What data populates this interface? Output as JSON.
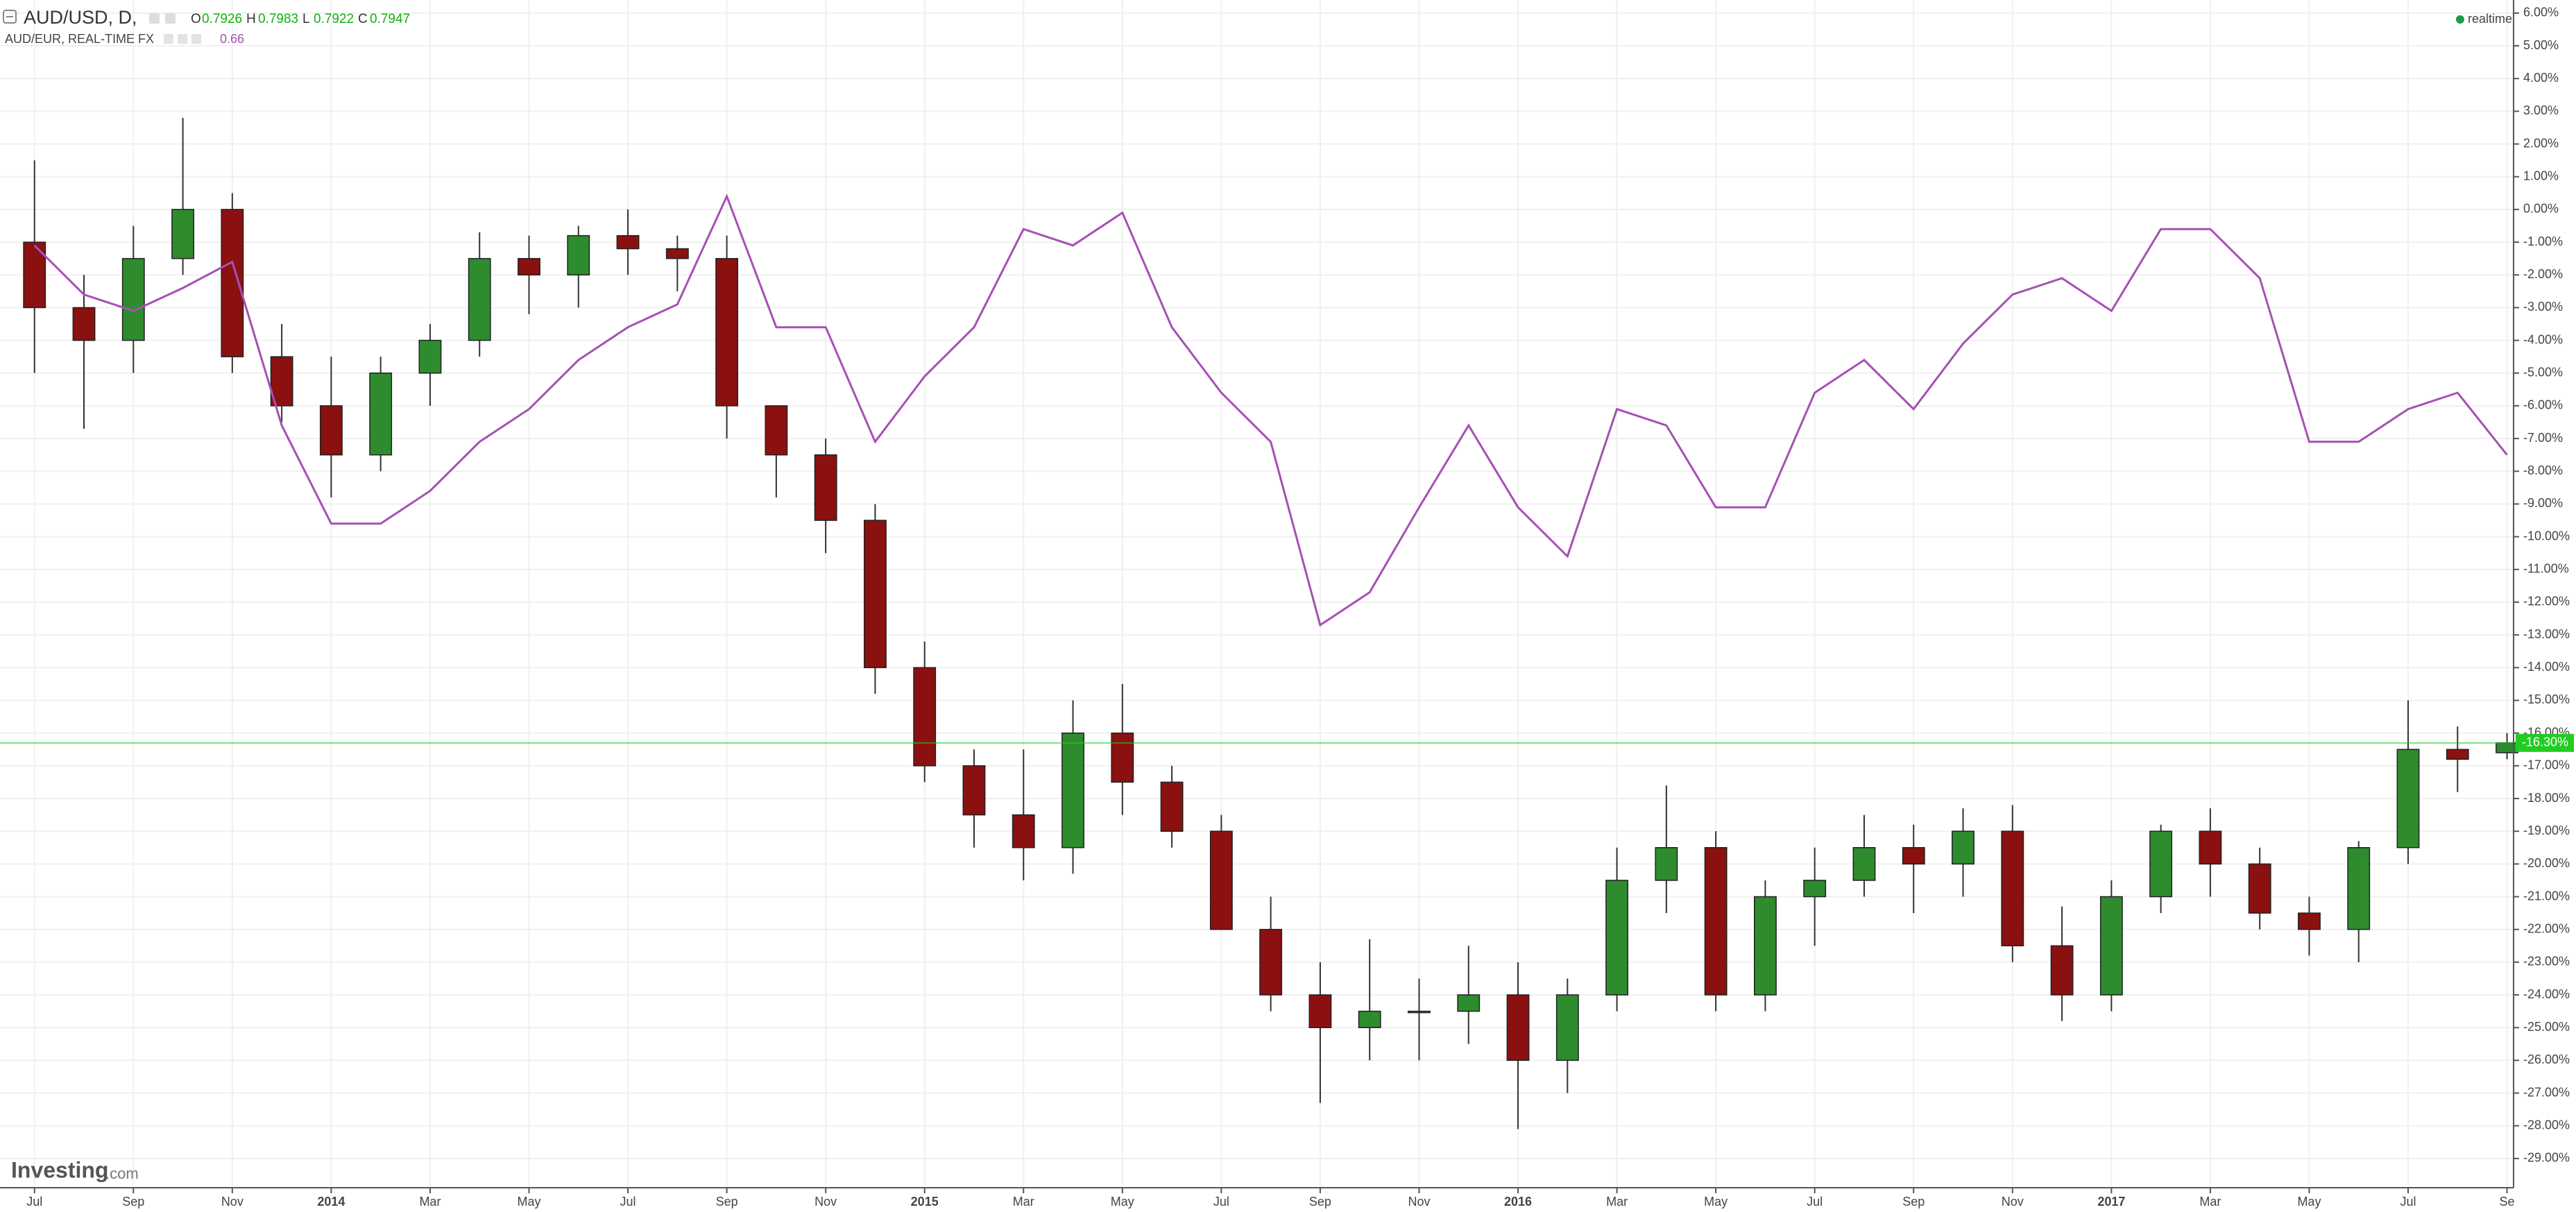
{
  "header": {
    "status": "realtime"
  },
  "logo": {
    "brand": "Investing",
    "suffix": ".com"
  },
  "chart_data": {
    "type": "candlestick",
    "categories": [
      "Jul",
      null,
      "Sep",
      null,
      "Nov",
      null,
      "2014",
      null,
      "Mar",
      null,
      "May",
      null,
      "Jul",
      null,
      "Sep",
      null,
      "Nov",
      null,
      "2015",
      null,
      "Mar",
      null,
      "May",
      null,
      "Jul",
      null,
      "Sep",
      null,
      "Nov",
      null,
      "2016",
      null,
      "Mar",
      null,
      "May",
      null,
      "Jul",
      null,
      "Sep",
      null,
      "Nov",
      null,
      "2017",
      null,
      "Mar",
      null,
      "May",
      null,
      "Jul",
      null,
      "Se"
    ],
    "series": [
      {
        "name": "AUD/USD, D,",
        "type": "candlestick",
        "up_color": "#2e8b2e",
        "down_color": "#8b1010",
        "readout": [
          {
            "label": "O",
            "value": 0.7926
          },
          {
            "label": "H",
            "value": 0.7983
          },
          {
            "label": "L",
            "value": 0.7922
          },
          {
            "label": "C",
            "value": 0.7947
          }
        ],
        "open": [
          -1,
          -3,
          -4,
          -1.5,
          0,
          -4.5,
          -6,
          -7.5,
          -5,
          -4,
          -1.5,
          -2,
          -0.8,
          -1.2,
          -1.5,
          -6,
          -7.5,
          -9.5,
          -14,
          -17,
          -18.5,
          -19.5,
          -16,
          -17.5,
          -19,
          -22,
          -24,
          -25,
          -24.5,
          -24.5,
          -24,
          -26,
          -24,
          -20.5,
          -19.5,
          -24,
          -21,
          -20.5,
          -19.5,
          -20,
          -19,
          -22.5,
          -24,
          -21,
          -19,
          -20,
          -21.5,
          -22,
          -19.5,
          -16.5,
          -16.6
        ],
        "high": [
          1.5,
          -2,
          -0.5,
          2.8,
          0.5,
          -3.5,
          -4.5,
          -4.5,
          -3.5,
          -0.7,
          -0.8,
          -0.5,
          0,
          -0.8,
          -0.8,
          -6,
          -7,
          -9,
          -13.2,
          -16.5,
          -16.5,
          -15,
          -14.5,
          -17,
          -18.5,
          -21,
          -23,
          -22.3,
          -23.5,
          -22.5,
          -23,
          -23.5,
          -19.5,
          -17.6,
          -19,
          -20.5,
          -19.5,
          -18.5,
          -18.8,
          -18.3,
          -18.2,
          -21.3,
          -20.5,
          -18.8,
          -18.3,
          -19.5,
          -21,
          -19.3,
          -15,
          -15.8,
          -16.0
        ],
        "low": [
          -5,
          -6.7,
          -5,
          -2,
          -5,
          -6.5,
          -8.8,
          -8,
          -6,
          -4.5,
          -3.2,
          -3,
          -2,
          -2.5,
          -7,
          -8.8,
          -10.5,
          -14.8,
          -17.5,
          -19.5,
          -20.5,
          -20.3,
          -18.5,
          -19.5,
          -22,
          -24.5,
          -27.3,
          -26,
          -26,
          -25.5,
          -28.1,
          -27,
          -24.5,
          -21.5,
          -24.5,
          -24.5,
          -22.5,
          -21,
          -21.5,
          -21,
          -23,
          -24.8,
          -24.5,
          -21.5,
          -21,
          -22,
          -22.8,
          -23,
          -20,
          -17.8,
          -16.8
        ],
        "close": [
          -3,
          -4,
          -1.5,
          0,
          -4.5,
          -6,
          -7.5,
          -5,
          -4,
          -1.5,
          -2,
          -0.8,
          -1.2,
          -1.5,
          -6,
          -7.5,
          -9.5,
          -14,
          -17,
          -18.5,
          -19.5,
          -16,
          -17.5,
          -19,
          -22,
          -24,
          -25,
          -24.5,
          -24.5,
          -24,
          -26,
          -24,
          -20.5,
          -19.5,
          -24,
          -21,
          -20.5,
          -19.5,
          -20,
          -19,
          -22.5,
          -24,
          -21,
          -19,
          -20,
          -21.5,
          -22,
          -19.5,
          -16.5,
          -16.8,
          -16.3
        ]
      },
      {
        "name": "AUD/EUR, REAL-TIME FX",
        "type": "line",
        "color": "#a650b4",
        "readout": 0.66,
        "values": [
          -1.1,
          -2.6,
          -3.1,
          -2.4,
          -1.6,
          -6.6,
          -9.6,
          -9.6,
          -8.6,
          -7.1,
          -6.1,
          -4.6,
          -3.6,
          -2.9,
          0.4,
          -3.6,
          -3.6,
          -7.1,
          -5.1,
          -3.6,
          -0.6,
          -1.1,
          -0.1,
          -3.6,
          -5.6,
          -7.1,
          -12.7,
          -11.7,
          -9.1,
          -6.6,
          -9.1,
          -10.6,
          -6.1,
          -6.6,
          -9.1,
          -9.1,
          -5.6,
          -4.6,
          -6.1,
          -4.1,
          -2.6,
          -2.1,
          -3.1,
          -0.6,
          -0.6,
          -2.1,
          -7.1,
          -7.1,
          -6.1,
          -5.6,
          -7.5
        ]
      }
    ],
    "price_line": {
      "value": -16.3,
      "label": "-16.30%",
      "color": "#22cc22"
    },
    "ylim": [
      -29.85,
      6.4
    ],
    "yticks": [
      {
        "value": 6,
        "label": "6.00%"
      },
      {
        "value": 5,
        "label": "5.00%"
      },
      {
        "value": 4,
        "label": "4.00%"
      },
      {
        "value": 3,
        "label": "3.00%"
      },
      {
        "value": 2,
        "label": "2.00%"
      },
      {
        "value": 1,
        "label": "1.00%"
      },
      {
        "value": 0,
        "label": "0.00%"
      },
      {
        "value": -1,
        "label": "-1.00%"
      },
      {
        "value": -2,
        "label": "-2.00%"
      },
      {
        "value": -3,
        "label": "-3.00%"
      },
      {
        "value": -4,
        "label": "-4.00%"
      },
      {
        "value": -5,
        "label": "-5.00%"
      },
      {
        "value": -6,
        "label": "-6.00%"
      },
      {
        "value": -7,
        "label": "-7.00%"
      },
      {
        "value": -8,
        "label": "-8.00%"
      },
      {
        "value": -9,
        "label": "-9.00%"
      },
      {
        "value": -10,
        "label": "-10.00%"
      },
      {
        "value": -11,
        "label": "-11.00%"
      },
      {
        "value": -12,
        "label": "-12.00%"
      },
      {
        "value": -13,
        "label": "-13.00%"
      },
      {
        "value": -14,
        "label": "-14.00%"
      },
      {
        "value": -15,
        "label": "-15.00%"
      },
      {
        "value": -16,
        "label": "-16.00%"
      },
      {
        "value": -17,
        "label": "-17.00%"
      },
      {
        "value": -18,
        "label": "-18.00%"
      },
      {
        "value": -19,
        "label": "-19.00%"
      },
      {
        "value": -20,
        "label": "-20.00%"
      },
      {
        "value": -21,
        "label": "-21.00%"
      },
      {
        "value": -22,
        "label": "-22.00%"
      },
      {
        "value": -23,
        "label": "-23.00%"
      },
      {
        "value": -24,
        "label": "-24.00%"
      },
      {
        "value": -25,
        "label": "-25.00%"
      },
      {
        "value": -26,
        "label": "-26.00%"
      },
      {
        "value": -27,
        "label": "-27.00%"
      },
      {
        "value": -28,
        "label": "-28.00%"
      },
      {
        "value": -29,
        "label": "-29.00%"
      }
    ],
    "grid": true
  }
}
